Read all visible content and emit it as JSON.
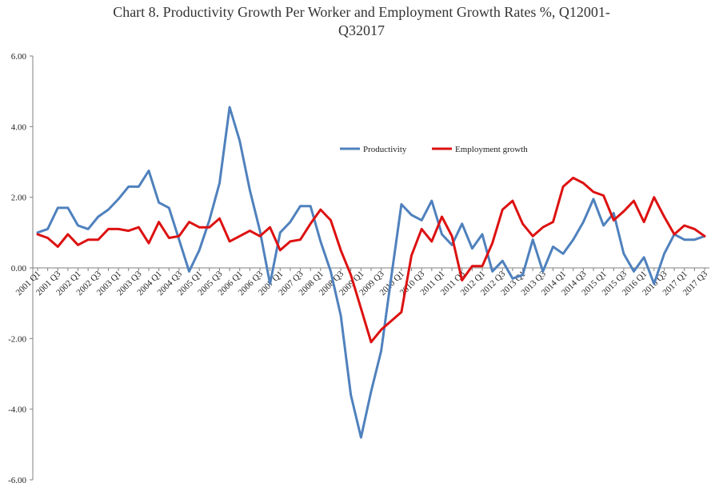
{
  "chart_data": {
    "type": "line",
    "title_line1": "Chart 8.  Productivity Growth Per Worker and Employment  Growth Rates %, Q12001-",
    "title_line2": "Q32017",
    "xlabel": "",
    "ylabel": "",
    "ylim": [
      -6,
      6
    ],
    "yticks": [
      6,
      4,
      2,
      0,
      -2,
      -4,
      -6
    ],
    "ytick_labels": [
      "6.00",
      "4.00",
      "2.00",
      "0.00",
      "-2.00",
      "-4.00",
      "-6.00"
    ],
    "grid": false,
    "legend_position": "center-right",
    "x": [
      "2001 Q1",
      "2001 Q2",
      "2001 Q3",
      "2001 Q4",
      "2002 Q1",
      "2002 Q2",
      "2002 Q3",
      "2002 Q4",
      "2003 Q1",
      "2003 Q2",
      "2003 Q3",
      "2003 Q4",
      "2004 Q1",
      "2004 Q2",
      "2004 Q3",
      "2004 Q4",
      "2005 Q1",
      "2005 Q2",
      "2005 Q3",
      "2005 Q4",
      "2006 Q1",
      "2006 Q2",
      "2006 Q3",
      "2006 Q4",
      "2007 Q1",
      "2007 Q2",
      "2007 Q3",
      "2007 Q4",
      "2008 Q1",
      "2008 Q2",
      "2008 Q3",
      "2008 Q4",
      "2009 Q1",
      "2009 Q2",
      "2009 Q3",
      "2009 Q4",
      "2010 Q1",
      "2010 Q2",
      "2010 Q3",
      "2010 Q4",
      "2011 Q1",
      "2011 Q2",
      "2011 Q3",
      "2011 Q4",
      "2012 Q1",
      "2012 Q2",
      "2012 Q3",
      "2012 Q4",
      "2013 Q1",
      "2013 Q2",
      "2013 Q3",
      "2013 Q4",
      "2014 Q1",
      "2014 Q2",
      "2014 Q3",
      "2014 Q4",
      "2015 Q1",
      "2015 Q2",
      "2015 Q3",
      "2015 Q4",
      "2016 Q1",
      "2016 Q2",
      "2016 Q3",
      "2016 Q4",
      "2017 Q1",
      "2017 Q2",
      "2017 Q3"
    ],
    "xtick_labels": [
      "2001 Q1",
      "2001 Q3",
      "2002 Q1",
      "2002 Q3",
      "2003 Q1",
      "2003 Q3",
      "2004 Q1",
      "2004 Q3",
      "2005 Q1",
      "2005 Q3",
      "2006 Q1",
      "2006 Q3",
      "2007 Q1",
      "2007 Q3",
      "2008 Q1",
      "2008 Q3",
      "2009 Q1",
      "2009 Q3",
      "2010 Q1",
      "2010 Q3",
      "2011 Q1",
      "2011 Q3",
      "2012 Q1",
      "2012 Q3",
      "2013 Q1",
      "2013 Q3",
      "2014 Q1",
      "2014 Q3",
      "2015 Q1",
      "2015 Q3",
      "2016 Q1",
      "2016 Q3",
      "2017 Q1",
      "2017 Q3"
    ],
    "series": [
      {
        "name": "Productivity",
        "color": "#4f81bd",
        "values": [
          1.0,
          1.1,
          1.7,
          1.7,
          1.2,
          1.1,
          1.45,
          1.65,
          1.95,
          2.3,
          2.3,
          2.75,
          1.85,
          1.7,
          0.8,
          -0.1,
          0.5,
          1.35,
          2.4,
          4.55,
          3.6,
          2.2,
          1.05,
          -0.45,
          1.0,
          1.3,
          1.75,
          1.75,
          0.75,
          -0.1,
          -1.35,
          -3.6,
          -4.8,
          -3.5,
          -2.35,
          -0.25,
          1.8,
          1.5,
          1.35,
          1.9,
          0.95,
          0.65,
          1.25,
          0.55,
          0.95,
          -0.1,
          0.2,
          -0.3,
          -0.2,
          0.8,
          -0.1,
          0.6,
          0.4,
          0.8,
          1.3,
          1.95,
          1.2,
          1.55,
          0.4,
          -0.1,
          0.3,
          -0.45,
          0.4,
          0.95,
          0.8,
          0.8,
          0.9
        ]
      },
      {
        "name": "Employment growth",
        "color": "#dd1111",
        "values": [
          0.95,
          0.85,
          0.6,
          0.95,
          0.65,
          0.8,
          0.8,
          1.1,
          1.1,
          1.05,
          1.15,
          0.7,
          1.3,
          0.85,
          0.9,
          1.3,
          1.15,
          1.15,
          1.4,
          0.75,
          0.9,
          1.05,
          0.9,
          1.15,
          0.5,
          0.75,
          0.8,
          1.25,
          1.65,
          1.35,
          0.5,
          -0.2,
          -1.15,
          -2.1,
          -1.75,
          -1.5,
          -1.25,
          0.35,
          1.1,
          0.75,
          1.45,
          0.9,
          -0.35,
          0.05,
          0.05,
          0.7,
          1.65,
          1.9,
          1.25,
          0.9,
          1.15,
          1.3,
          2.3,
          2.55,
          2.4,
          2.15,
          2.05,
          1.35,
          1.6,
          1.9,
          1.3,
          2.0,
          1.45,
          0.95,
          1.2,
          1.1,
          0.9
        ]
      }
    ]
  }
}
